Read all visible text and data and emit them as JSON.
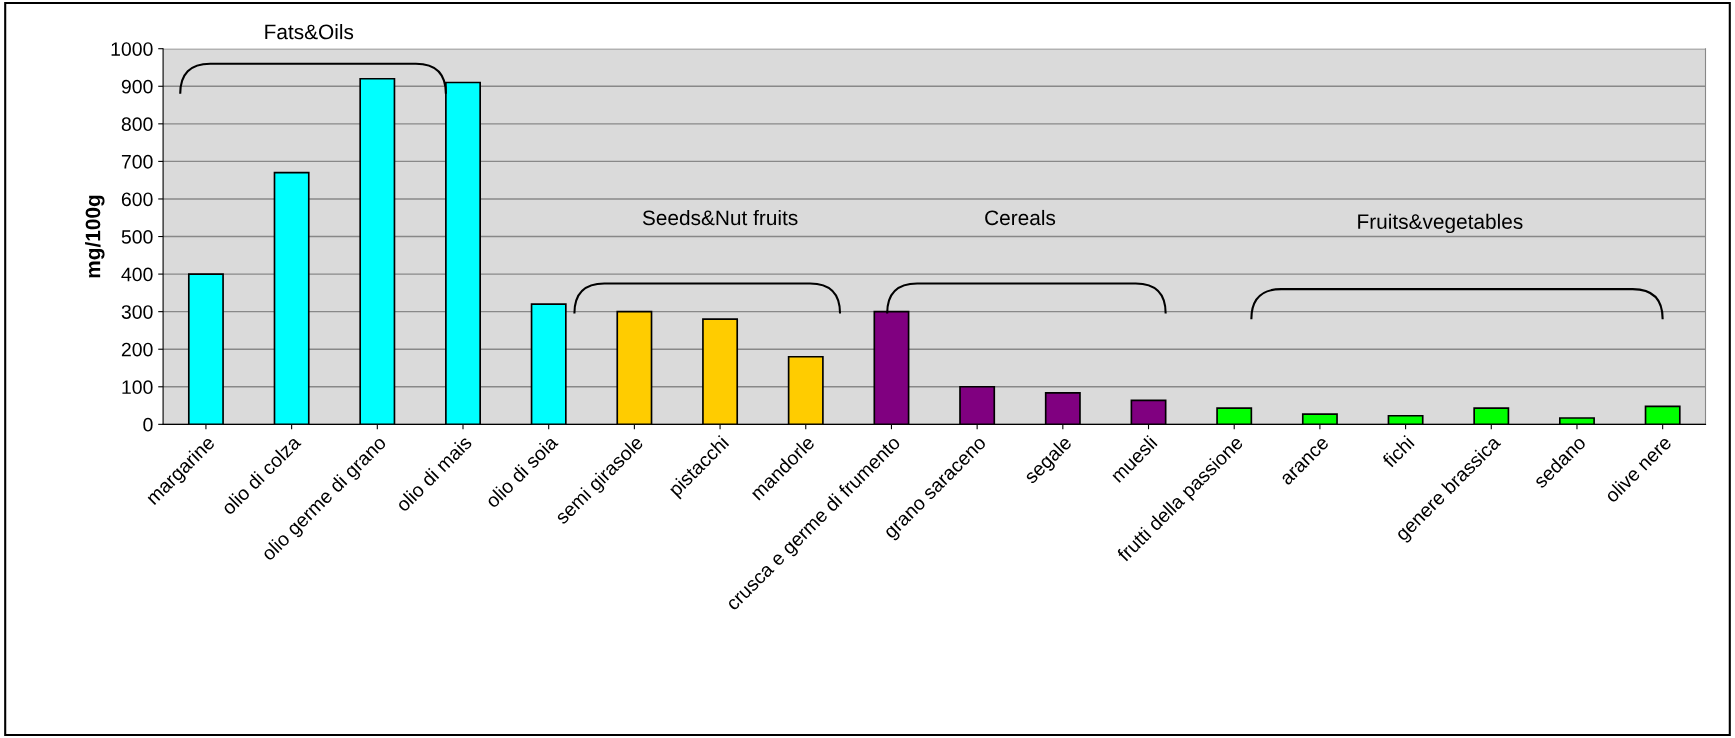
{
  "chart_data": {
    "type": "bar",
    "ylabel": "mg/100g",
    "categories": [
      "margarine",
      "olio di colza",
      "olio germe di grano",
      "olio di mais",
      "olio di soia",
      "semi girasole",
      "pistacchi",
      "mandorle",
      "crusca e germe di frumento",
      "grano saraceno",
      "segale",
      "muesli",
      "frutti della passione",
      "arance",
      "fichi",
      "genere brassica",
      "sedano",
      "olive nere"
    ],
    "values": [
      400,
      670,
      920,
      910,
      320,
      300,
      280,
      180,
      300,
      100,
      84,
      64,
      43,
      27,
      23,
      43,
      17,
      48
    ],
    "colors": [
      "#00ffff",
      "#00ffff",
      "#00ffff",
      "#00ffff",
      "#00ffff",
      "#ffcc00",
      "#ffcc00",
      "#ffcc00",
      "#800080",
      "#800080",
      "#800080",
      "#800080",
      "#00ff00",
      "#00ff00",
      "#00ff00",
      "#00ff00",
      "#00ff00",
      "#00ff00"
    ],
    "ylim": [
      0,
      1000
    ],
    "yticks": [
      0,
      100,
      200,
      300,
      400,
      500,
      600,
      700,
      800,
      900,
      1000
    ],
    "grid": "y",
    "annotations": [
      "Fats&Oils",
      "Seeds&Nut fruits",
      "Cereals",
      "Fruits&vegetables"
    ]
  }
}
